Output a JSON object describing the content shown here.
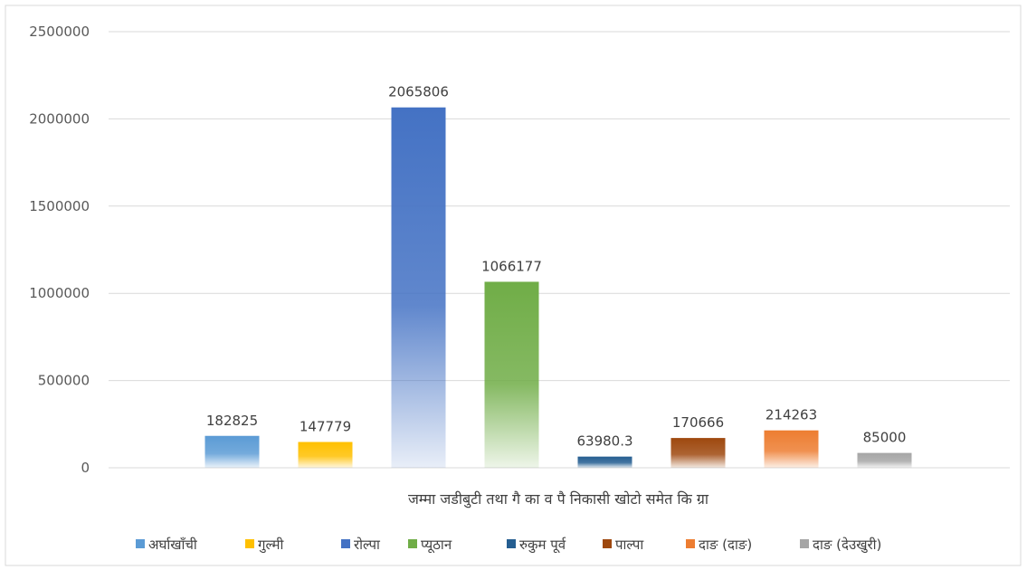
{
  "chart_data": {
    "type": "bar",
    "categories": [
      "जम्मा जडीबुटी तथा गै का व पै निकासी खोटो समेत कि ग्रा"
    ],
    "series": [
      {
        "name": "अर्घाखाँची",
        "values": [
          182825
        ],
        "label": "182825",
        "color": "#5b9bd5"
      },
      {
        "name": "गुल्मी",
        "values": [
          147779
        ],
        "label": "147779",
        "color": "#ffc000"
      },
      {
        "name": "रोल्पा",
        "values": [
          2065806
        ],
        "label": "2065806",
        "color": "#4472c4"
      },
      {
        "name": "प्यूठान",
        "values": [
          1066177
        ],
        "label": "1066177",
        "color": "#70ad47"
      },
      {
        "name": "रुकुम पूर्व",
        "values": [
          63980.3
        ],
        "label": "63980.3",
        "color": "#255e91"
      },
      {
        "name": "पाल्पा",
        "values": [
          170666
        ],
        "label": "170666",
        "color": "#9e480e"
      },
      {
        "name": "दाङ (दाङ)",
        "values": [
          214263
        ],
        "label": "214263",
        "color": "#ed7d31"
      },
      {
        "name": "दाङ (देउखुरी)",
        "values": [
          85000
        ],
        "label": "85000",
        "color": "#a5a5a5"
      }
    ],
    "yticks": [
      "0",
      "500000",
      "1000000",
      "1500000",
      "2000000",
      "2500000"
    ],
    "ylim": [
      0,
      2500000
    ],
    "grid": true,
    "legend": "bottom",
    "xlabel": "",
    "ylabel": "",
    "title": ""
  }
}
